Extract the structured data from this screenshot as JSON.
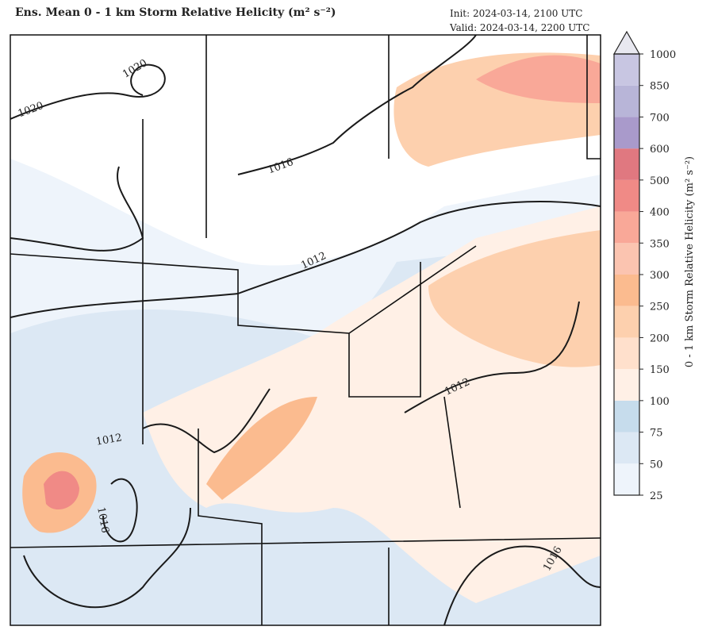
{
  "header": {
    "title": "Ens. Mean 0 - 1 km Storm Relative Helicity (m² s⁻²)",
    "init": "Init:  2024-03-14, 2100 UTC",
    "valid": "Valid: 2024-03-14, 2200 UTC"
  },
  "colorbar": {
    "label": "0 - 1 km Storm Relative Helicity (m² s⁻²)",
    "levels": [
      25,
      50,
      75,
      100,
      150,
      200,
      250,
      300,
      350,
      400,
      500,
      600,
      700,
      850,
      1000
    ],
    "colors": [
      "#eef4fb",
      "#dce8f4",
      "#c6dcec",
      "#fff0e6",
      "#ffe0cc",
      "#fdd0ae",
      "#fbbb8f",
      "#fbc4b0",
      "#f9a898",
      "#f08a86",
      "#e07880",
      "#a99acb",
      "#b8b5d8",
      "#c8c6e2"
    ],
    "extend_color": "#e8e8f0"
  },
  "contour_labels": [
    1020,
    1020,
    1016,
    1012,
    1012,
    1016,
    1016,
    1012
  ]
}
